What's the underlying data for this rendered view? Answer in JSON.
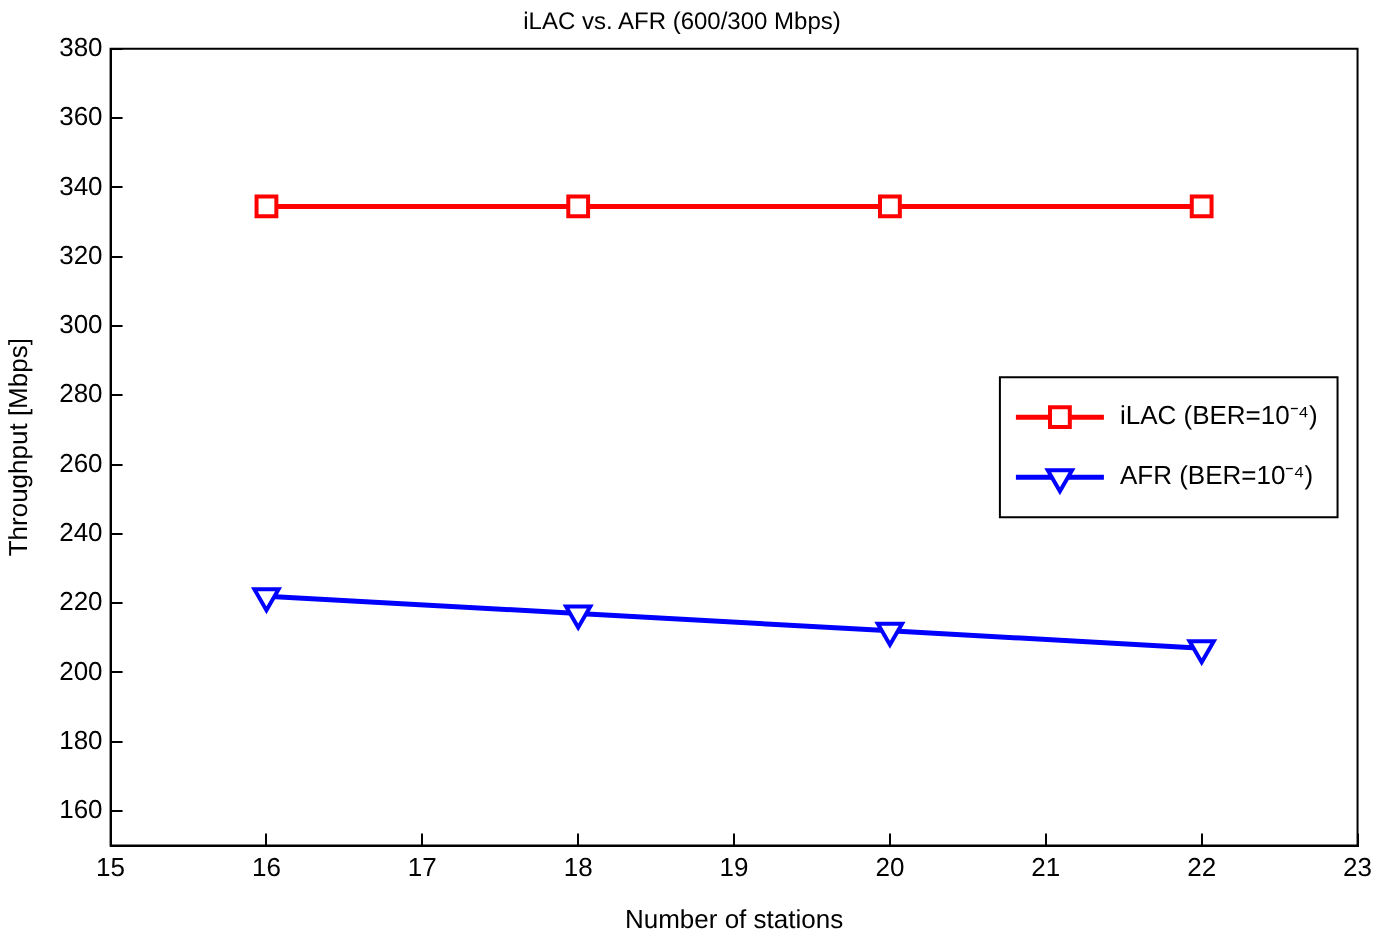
{
  "chart_data": {
    "type": "line",
    "title": "iLAC vs. AFR (600/300 Mbps)",
    "xlabel": "Number of stations",
    "ylabel": "Throughput [Mbps]",
    "x": [
      16,
      18,
      20,
      22
    ],
    "series": [
      {
        "name": "iLAC (BER=10⁻⁴)",
        "color": "#ff0000",
        "values": [
          334.5,
          334.5,
          334.5,
          334.5
        ],
        "marker": "square"
      },
      {
        "name": "AFR (BER=10⁻⁴)",
        "color": "#0000ff",
        "values": [
          222,
          217,
          212,
          207
        ],
        "marker": "triangle"
      }
    ],
    "xlim": [
      15,
      23
    ],
    "xticks": [
      15,
      16,
      17,
      18,
      19,
      20,
      21,
      22,
      23
    ],
    "ylim": [
      150,
      380
    ],
    "yticks": [
      160,
      180,
      200,
      220,
      240,
      260,
      280,
      300,
      320,
      340,
      360,
      380
    ],
    "grid": false,
    "legend": "right",
    "line_style": "solid"
  }
}
